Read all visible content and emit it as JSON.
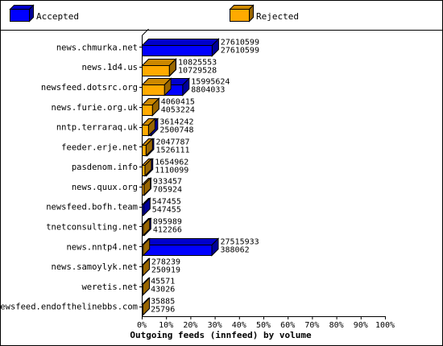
{
  "chart_data": {
    "type": "bar",
    "orientation": "horizontal",
    "stacked": "overlay",
    "title": "",
    "xlabel": "Outgoing feeds (innfeed) by volume",
    "ylabel": "",
    "xlim": [
      0,
      100
    ],
    "x_ticks": [
      "0%",
      "10%",
      "20%",
      "30%",
      "40%",
      "50%",
      "60%",
      "70%",
      "80%",
      "90%",
      "100%"
    ],
    "legend_placement": "top",
    "grid": false,
    "categories": [
      "news.chmurka.net",
      "news.1d4.us",
      "newsfeed.dotsrc.org",
      "news.furie.org.uk",
      "nntp.terraraq.uk",
      "feeder.erje.net",
      "pasdenom.info",
      "news.quux.org",
      "newsfeed.bofh.team",
      "tnetconsulting.net",
      "news.nntp4.net",
      "news.samoylyk.net",
      "weretis.net",
      "newsfeed.endofthelinebbs.com"
    ],
    "series": [
      {
        "name": "Accepted",
        "color": "#0000ff",
        "values": [
          27610599,
          10825553,
          15995624,
          4060415,
          3614242,
          2047787,
          1654962,
          933457,
          547455,
          895989,
          27515933,
          278239,
          45571,
          35885
        ]
      },
      {
        "name": "Rejected",
        "color": "#ffaa00",
        "values": [
          27610599,
          10729528,
          8804033,
          4053224,
          2500748,
          1526111,
          1110099,
          705924,
          547455,
          412266,
          388062,
          250919,
          43026,
          25796
        ]
      }
    ]
  }
}
